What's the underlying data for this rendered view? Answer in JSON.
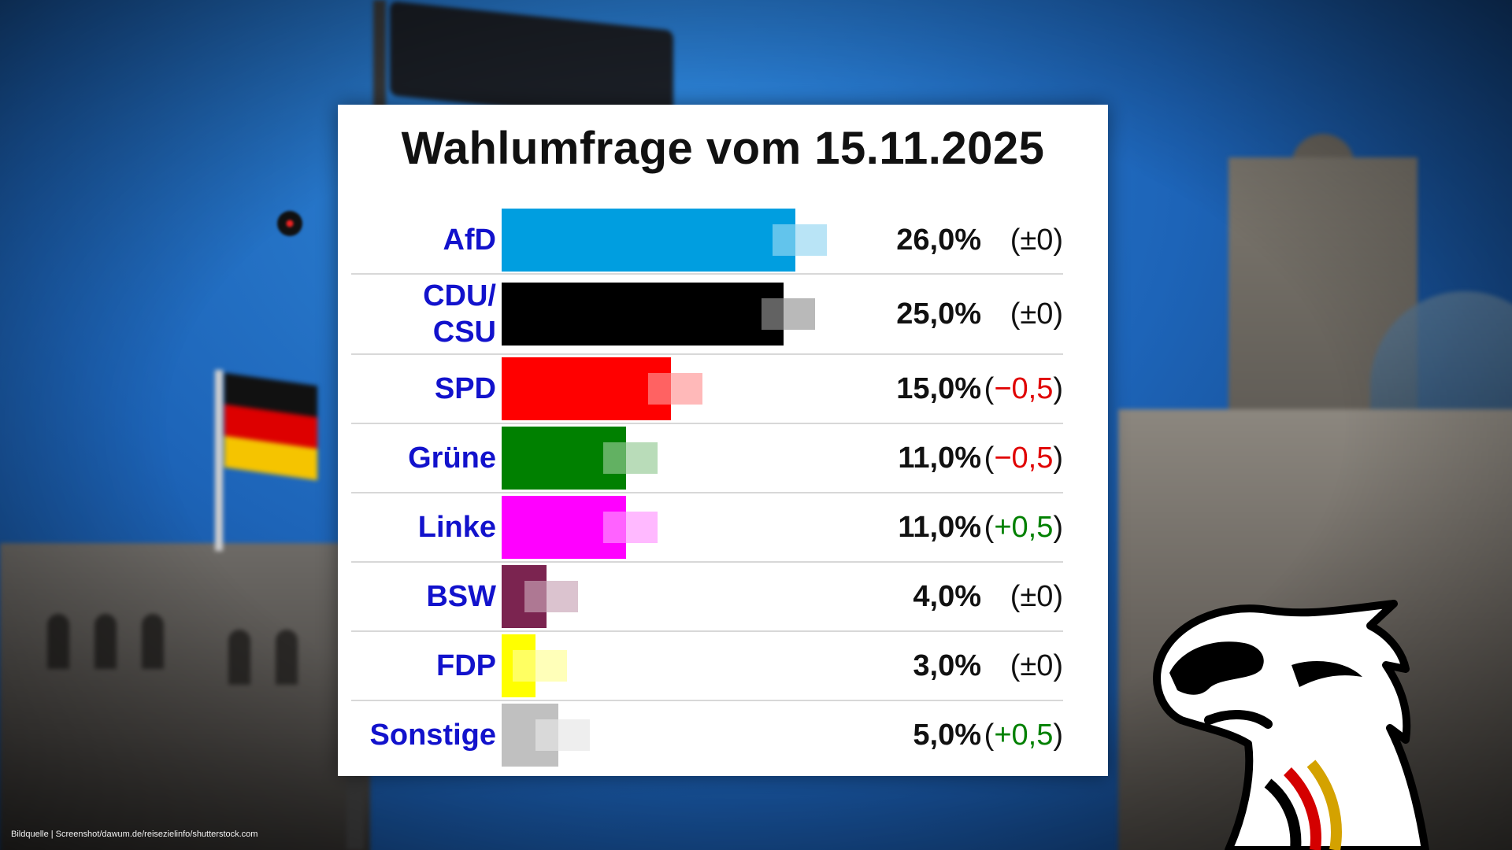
{
  "colors": {
    "party_label": "#1212cc",
    "change_negative": "#e00000",
    "change_positive": "#008000",
    "change_neutral": "#111111"
  },
  "chart_data": {
    "type": "bar",
    "orientation": "horizontal",
    "title": "Wahlumfrage vom 15.11.2025",
    "xlim": [
      0,
      30
    ],
    "grid": false,
    "categories": [
      "AfD",
      "CDU/\nCSU",
      "SPD",
      "Grüne",
      "Linke",
      "BSW",
      "FDP",
      "Sonstige"
    ],
    "values": [
      26.0,
      25.0,
      15.0,
      11.0,
      11.0,
      4.0,
      3.0,
      5.0
    ],
    "value_labels": [
      "26,0%",
      "25,0%",
      "15,0%",
      "11,0%",
      "11,0%",
      "4,0%",
      "3,0%",
      "5,0%"
    ],
    "changes": [
      {
        "text": "±0",
        "sign": "neutral"
      },
      {
        "text": "±0",
        "sign": "neutral"
      },
      {
        "text": "−0,5",
        "sign": "negative"
      },
      {
        "text": "−0,5",
        "sign": "negative"
      },
      {
        "text": "+0,5",
        "sign": "positive"
      },
      {
        "text": "±0",
        "sign": "neutral"
      },
      {
        "text": "±0",
        "sign": "neutral"
      },
      {
        "text": "+0,5",
        "sign": "positive"
      }
    ],
    "bar_colors": [
      "#009ee0",
      "#000000",
      "#ff0000",
      "#008000",
      "#ff00ff",
      "#7b2450",
      "#ffff00",
      "#c0c0c0"
    ]
  },
  "credit": "Bildquelle | Screenshot/dawum.de/reisezielinfo/shutterstock.com"
}
